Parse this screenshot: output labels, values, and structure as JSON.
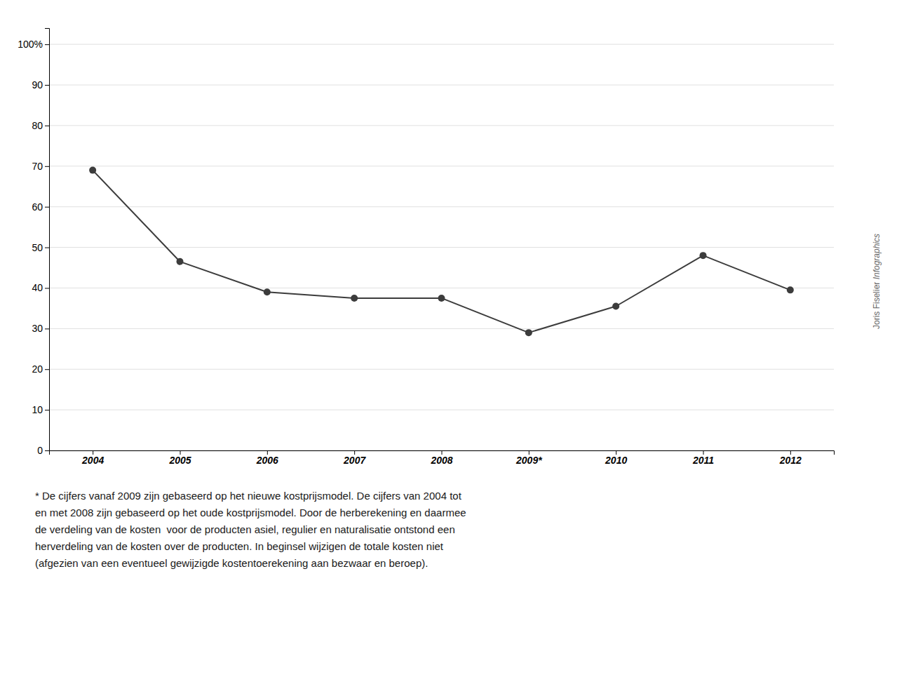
{
  "chart_data": {
    "type": "line",
    "categories": [
      "2004",
      "2005",
      "2006",
      "2007",
      "2008",
      "2009*",
      "2010",
      "2011",
      "2012"
    ],
    "values": [
      69,
      46.5,
      39,
      37.5,
      37.5,
      29,
      35.5,
      48,
      39.5
    ],
    "color": "#3c3c3c",
    "marker": "circle",
    "ylim": [
      0,
      104
    ],
    "yticks": [
      0,
      10,
      20,
      30,
      40,
      50,
      60,
      70,
      80,
      90,
      {
        "value": 100,
        "label": "100%"
      }
    ],
    "grid": true,
    "annotations": [
      "* De cijfers vanaf 2009 zijn gebaseerd op het nieuwe kostprijsmodel. De cijfers van 2004 tot\nen met 2008 zijn gebaseerd op het oude kostprijsmodel. Door de herberekening en daarmee\nde verdeling van de kosten  voor de producten asiel, regulier en naturalisatie ontstond een\nherverdeling van de kosten over de producten. In beginsel wijzigen de totale kosten niet\n(afgezien van een eventueel gewijzigde kostentoerekening aan bezwaar en beroep).",
      "Joris Fiselier ",
      "Infographics"
    ]
  }
}
